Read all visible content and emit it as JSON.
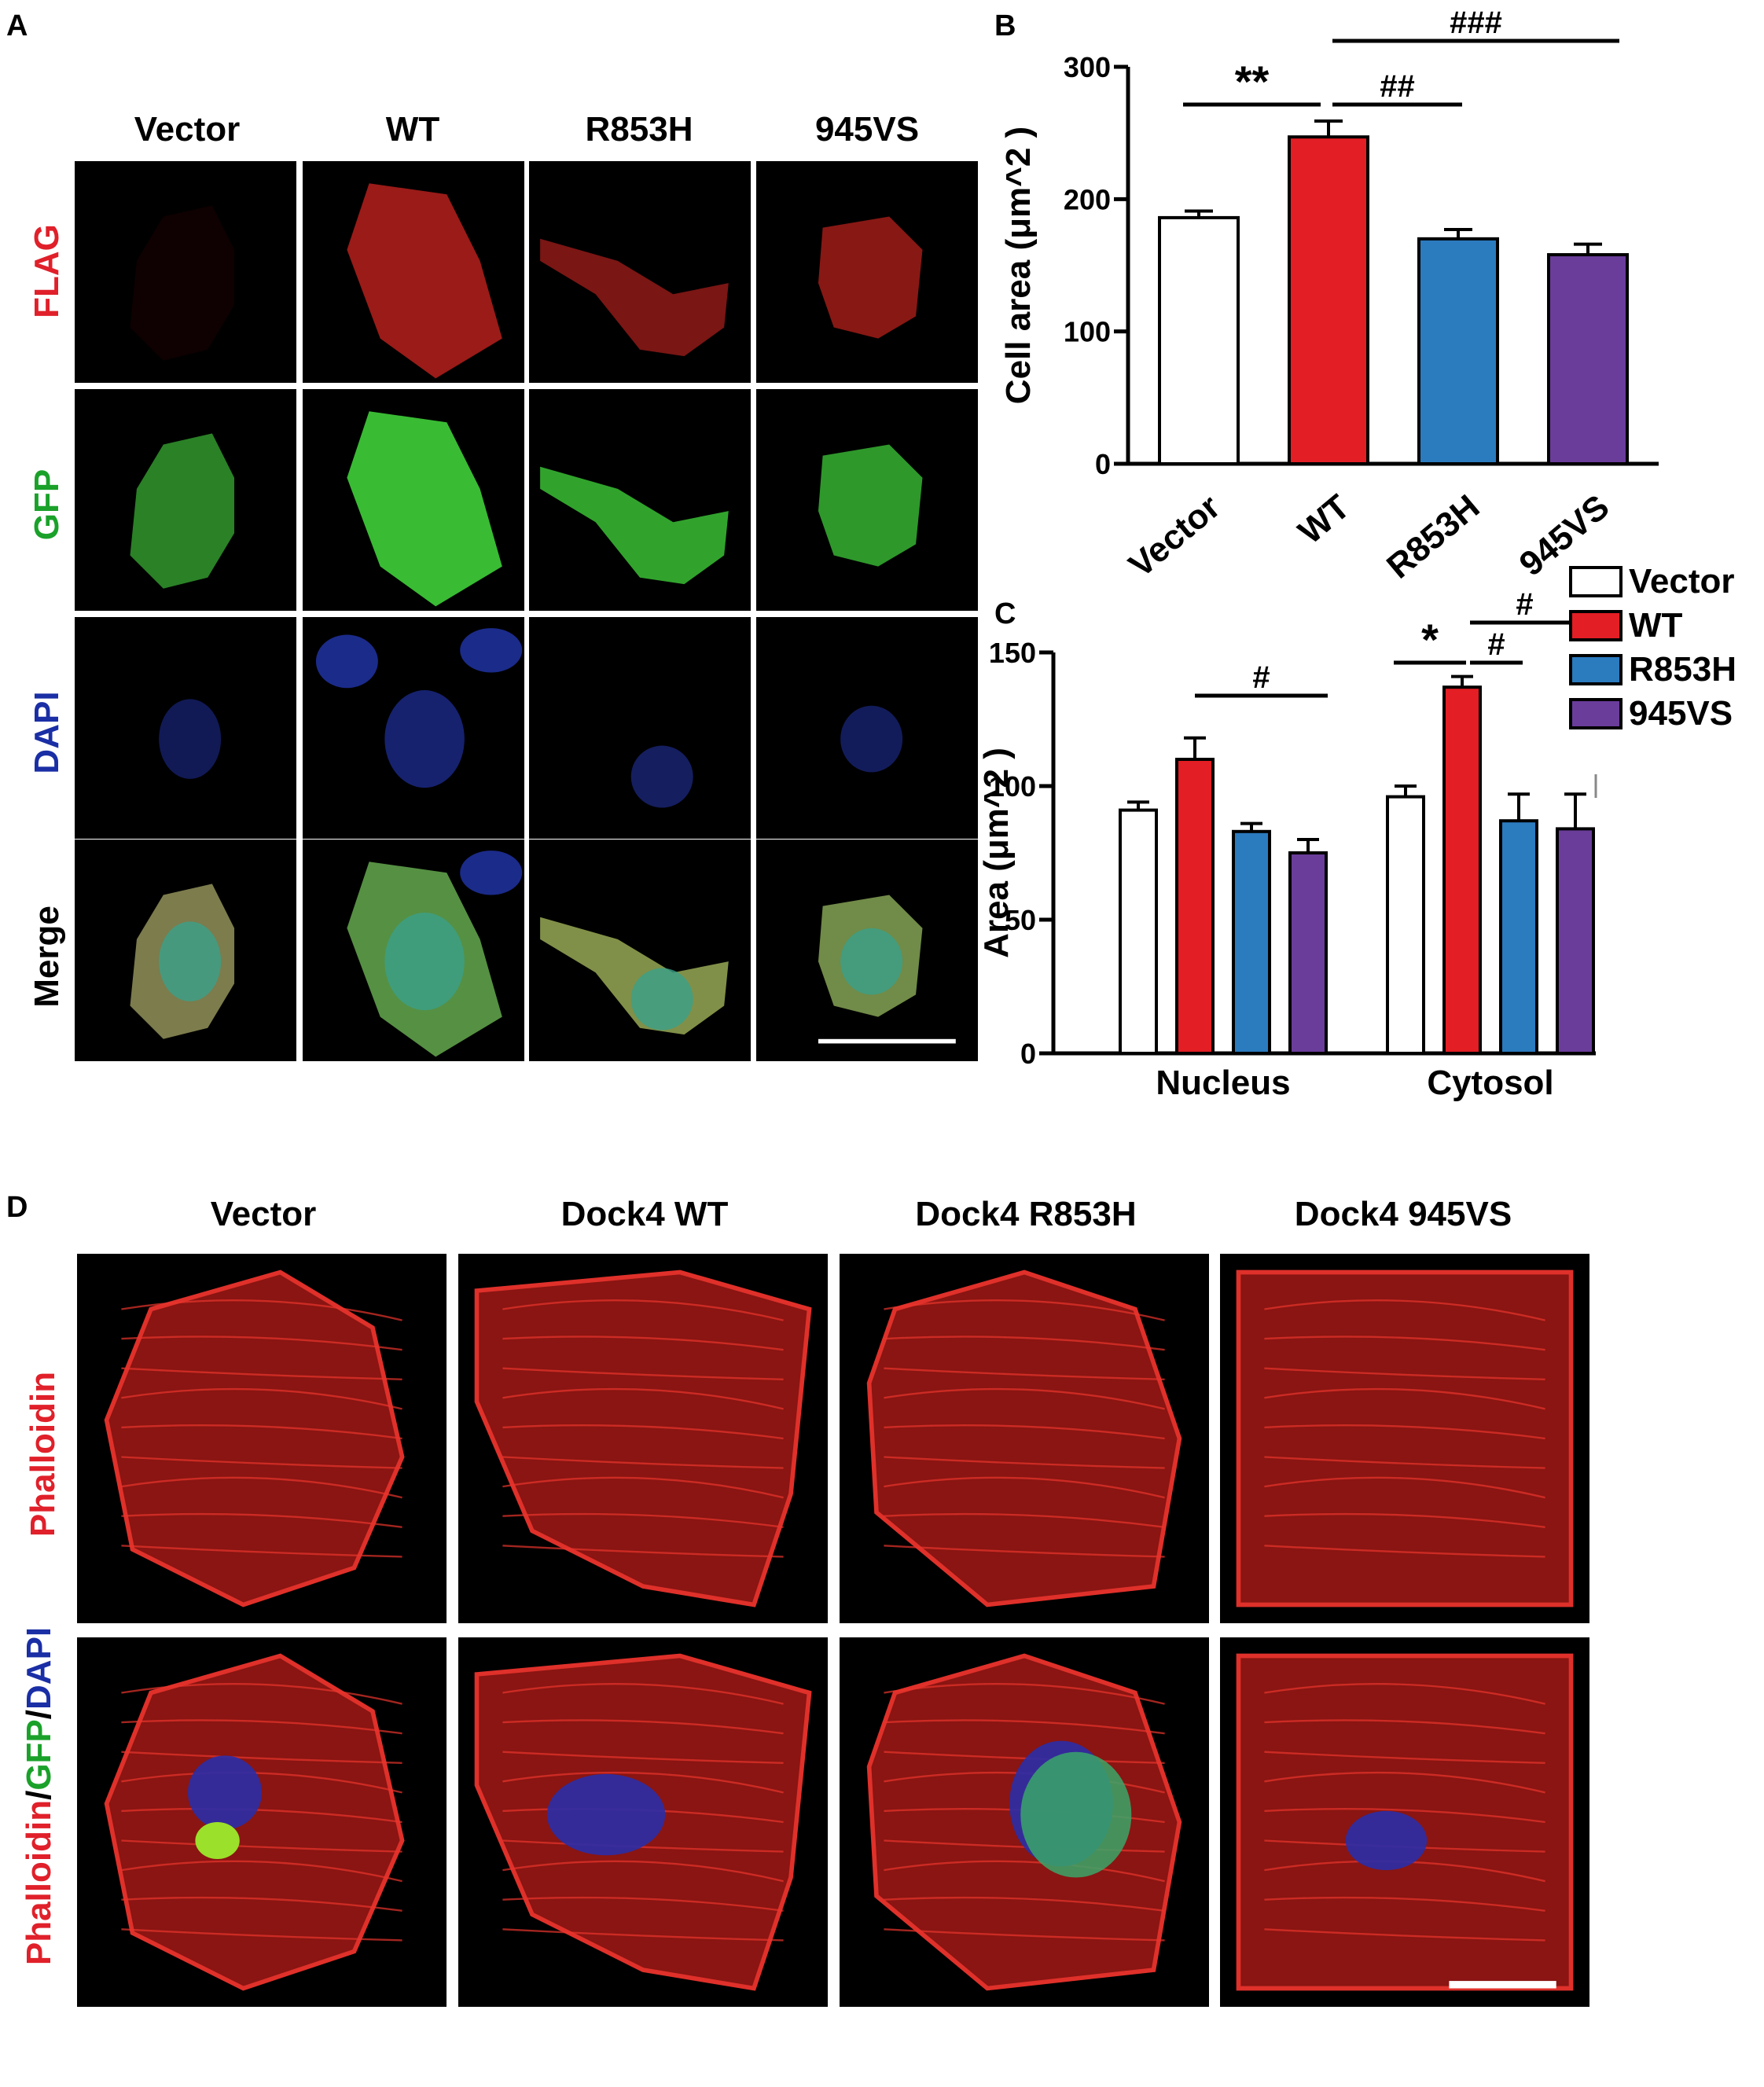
{
  "panel_a": {
    "label": "A",
    "columns": [
      "Vector",
      "WT",
      "R853H",
      "945VS"
    ],
    "rows": [
      {
        "label": "FLAG",
        "color": "#e0202a"
      },
      {
        "label": "GFP",
        "color": "#1aa12a"
      },
      {
        "label": "DAPI",
        "color": "#1a2ea5"
      },
      {
        "label": "Merge",
        "color": "#000000"
      }
    ]
  },
  "panel_b": {
    "label": "B"
  },
  "panel_c": {
    "label": "C"
  },
  "panel_d": {
    "label": "D",
    "columns": [
      "Vector",
      "Dock4 WT",
      "Dock4 R853H",
      "Dock4 945VS"
    ],
    "row1_label": "Phalloidin",
    "row2_label": {
      "part1": "Phalloidin",
      "sep1": "/",
      "part2": "GFP",
      "sep2": "/",
      "part3": "DAPI"
    },
    "colors": {
      "phalloidin": "#e0202a",
      "gfp": "#1aa12a",
      "dapi": "#1a2ea5"
    }
  },
  "colors": {
    "vector": "#ffffff",
    "wt": "#e31e24",
    "r853h": "#2b7bbf",
    "vs945": "#6a3d9a"
  },
  "chart_data": [
    {
      "type": "bar",
      "categories": [
        "Vector",
        "WT",
        "R853H",
        "945VS"
      ],
      "values": [
        186,
        247,
        170,
        158
      ],
      "errors": [
        5,
        12,
        7,
        8
      ],
      "ylabel": "Cell area (μm^2 )",
      "ylim": [
        0,
        300
      ],
      "yticks": [
        0,
        100,
        200,
        300
      ],
      "significance": [
        {
          "from": 0,
          "to": 1,
          "text": "**"
        },
        {
          "from": 1,
          "to": 2,
          "text": "##"
        },
        {
          "from": 1,
          "to": 3,
          "text": "###"
        }
      ]
    },
    {
      "type": "bar",
      "categories": [
        "Nucleus",
        "Cytosol"
      ],
      "series": [
        {
          "name": "Vector",
          "values": [
            91,
            96
          ],
          "errors": [
            3,
            4
          ]
        },
        {
          "name": "WT",
          "values": [
            110,
            137
          ],
          "errors": [
            8,
            4
          ]
        },
        {
          "name": "R853H",
          "values": [
            83,
            87
          ],
          "errors": [
            3,
            10
          ]
        },
        {
          "name": "945VS",
          "values": [
            75,
            84
          ],
          "errors": [
            5,
            13
          ]
        }
      ],
      "ylabel": "Area (μm^2 )",
      "ylim": [
        0,
        150
      ],
      "yticks": [
        0,
        50,
        100,
        150
      ],
      "legend": "top-right",
      "significance": [
        {
          "group": 0,
          "from": 1,
          "to": 3,
          "text": "#"
        },
        {
          "group": 1,
          "from": 0,
          "to": 1,
          "text": "*"
        },
        {
          "group": 1,
          "from": 1,
          "to": 2,
          "text": "#"
        },
        {
          "group": 1,
          "from": 1,
          "to": 3,
          "text": "#"
        }
      ]
    }
  ]
}
